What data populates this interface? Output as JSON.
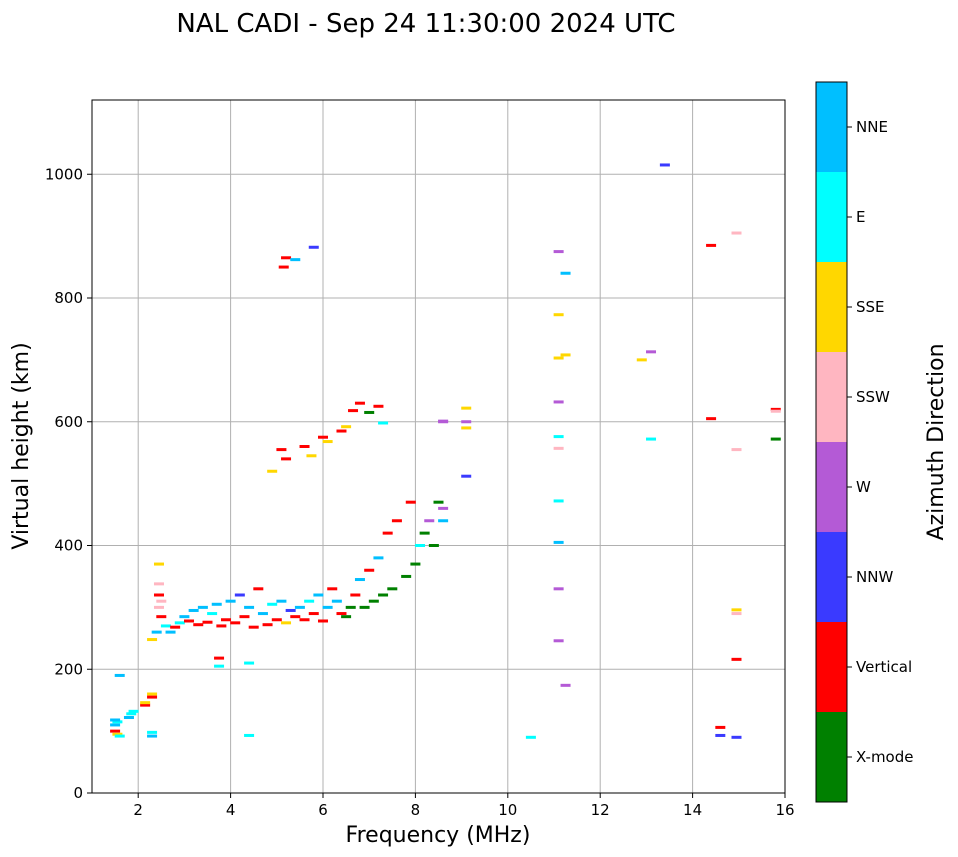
{
  "chart_data": {
    "type": "scatter",
    "title": "NAL CADI - Sep 24 11:30:00 2024 UTC",
    "xlabel": "Frequency (MHz)",
    "ylabel": "Virtual height (km)",
    "xlim": [
      1,
      16
    ],
    "ylim": [
      0,
      1120
    ],
    "xticks": [
      "2",
      "4",
      "6",
      "8",
      "10",
      "12",
      "14",
      "16"
    ],
    "yticks": [
      "0",
      "200",
      "400",
      "600",
      "800",
      "1000"
    ],
    "grid": true,
    "colorbar": {
      "label": "Azimuth Direction",
      "categories": [
        {
          "name": "X-mode",
          "color": "#008000"
        },
        {
          "name": "Vertical",
          "color": "#ff0000"
        },
        {
          "name": "NNW",
          "color": "#3a3aff"
        },
        {
          "name": "W",
          "color": "#b45ad6"
        },
        {
          "name": "SSW",
          "color": "#ffb6c1"
        },
        {
          "name": "SSE",
          "color": "#ffd700"
        },
        {
          "name": "E",
          "color": "#00ffff"
        },
        {
          "name": "NNE",
          "color": "#00bfff"
        }
      ]
    },
    "points": [
      {
        "x": 1.5,
        "y": 100,
        "c": "Vertical"
      },
      {
        "x": 1.55,
        "y": 95,
        "c": "SSE"
      },
      {
        "x": 1.6,
        "y": 92,
        "c": "E"
      },
      {
        "x": 1.5,
        "y": 110,
        "c": "NNE"
      },
      {
        "x": 1.55,
        "y": 115,
        "c": "E"
      },
      {
        "x": 1.5,
        "y": 118,
        "c": "NNE"
      },
      {
        "x": 1.6,
        "y": 190,
        "c": "NNE"
      },
      {
        "x": 1.8,
        "y": 122,
        "c": "NNE"
      },
      {
        "x": 1.85,
        "y": 128,
        "c": "E"
      },
      {
        "x": 1.9,
        "y": 132,
        "c": "E"
      },
      {
        "x": 2.15,
        "y": 142,
        "c": "Vertical"
      },
      {
        "x": 2.15,
        "y": 146,
        "c": "SSE"
      },
      {
        "x": 2.3,
        "y": 155,
        "c": "Vertical"
      },
      {
        "x": 2.3,
        "y": 160,
        "c": "SSE"
      },
      {
        "x": 2.3,
        "y": 92,
        "c": "NNE"
      },
      {
        "x": 2.3,
        "y": 98,
        "c": "E"
      },
      {
        "x": 2.3,
        "y": 248,
        "c": "SSE"
      },
      {
        "x": 2.4,
        "y": 260,
        "c": "NNE"
      },
      {
        "x": 2.45,
        "y": 300,
        "c": "SSW"
      },
      {
        "x": 2.45,
        "y": 320,
        "c": "Vertical"
      },
      {
        "x": 2.45,
        "y": 338,
        "c": "SSW"
      },
      {
        "x": 2.45,
        "y": 370,
        "c": "SSE"
      },
      {
        "x": 2.5,
        "y": 310,
        "c": "SSW"
      },
      {
        "x": 2.5,
        "y": 285,
        "c": "Vertical"
      },
      {
        "x": 2.6,
        "y": 270,
        "c": "E"
      },
      {
        "x": 2.7,
        "y": 260,
        "c": "NNE"
      },
      {
        "x": 2.8,
        "y": 268,
        "c": "Vertical"
      },
      {
        "x": 2.9,
        "y": 275,
        "c": "E"
      },
      {
        "x": 3.0,
        "y": 285,
        "c": "NNE"
      },
      {
        "x": 3.1,
        "y": 278,
        "c": "Vertical"
      },
      {
        "x": 3.2,
        "y": 295,
        "c": "NNE"
      },
      {
        "x": 3.3,
        "y": 272,
        "c": "Vertical"
      },
      {
        "x": 3.4,
        "y": 300,
        "c": "NNE"
      },
      {
        "x": 3.5,
        "y": 276,
        "c": "Vertical"
      },
      {
        "x": 3.6,
        "y": 290,
        "c": "E"
      },
      {
        "x": 3.7,
        "y": 305,
        "c": "NNE"
      },
      {
        "x": 3.8,
        "y": 270,
        "c": "Vertical"
      },
      {
        "x": 3.9,
        "y": 280,
        "c": "Vertical"
      },
      {
        "x": 4.0,
        "y": 310,
        "c": "NNE"
      },
      {
        "x": 4.1,
        "y": 275,
        "c": "Vertical"
      },
      {
        "x": 4.2,
        "y": 320,
        "c": "NNW"
      },
      {
        "x": 4.3,
        "y": 285,
        "c": "Vertical"
      },
      {
        "x": 4.4,
        "y": 300,
        "c": "NNE"
      },
      {
        "x": 4.5,
        "y": 268,
        "c": "Vertical"
      },
      {
        "x": 4.6,
        "y": 330,
        "c": "Vertical"
      },
      {
        "x": 4.7,
        "y": 290,
        "c": "NNE"
      },
      {
        "x": 4.8,
        "y": 272,
        "c": "Vertical"
      },
      {
        "x": 4.9,
        "y": 305,
        "c": "E"
      },
      {
        "x": 5.0,
        "y": 280,
        "c": "Vertical"
      },
      {
        "x": 5.1,
        "y": 310,
        "c": "NNE"
      },
      {
        "x": 5.2,
        "y": 275,
        "c": "SSE"
      },
      {
        "x": 5.3,
        "y": 295,
        "c": "NNW"
      },
      {
        "x": 5.4,
        "y": 285,
        "c": "Vertical"
      },
      {
        "x": 5.5,
        "y": 300,
        "c": "NNE"
      },
      {
        "x": 5.6,
        "y": 280,
        "c": "Vertical"
      },
      {
        "x": 5.7,
        "y": 310,
        "c": "E"
      },
      {
        "x": 5.8,
        "y": 290,
        "c": "Vertical"
      },
      {
        "x": 5.9,
        "y": 320,
        "c": "NNE"
      },
      {
        "x": 6.0,
        "y": 278,
        "c": "Vertical"
      },
      {
        "x": 6.1,
        "y": 300,
        "c": "NNE"
      },
      {
        "x": 6.2,
        "y": 330,
        "c": "Vertical"
      },
      {
        "x": 6.3,
        "y": 310,
        "c": "NNE"
      },
      {
        "x": 6.4,
        "y": 290,
        "c": "Vertical"
      },
      {
        "x": 6.5,
        "y": 285,
        "c": "X-mode"
      },
      {
        "x": 6.6,
        "y": 300,
        "c": "X-mode"
      },
      {
        "x": 6.7,
        "y": 320,
        "c": "Vertical"
      },
      {
        "x": 6.8,
        "y": 345,
        "c": "NNE"
      },
      {
        "x": 6.9,
        "y": 300,
        "c": "X-mode"
      },
      {
        "x": 7.0,
        "y": 360,
        "c": "Vertical"
      },
      {
        "x": 7.1,
        "y": 310,
        "c": "X-mode"
      },
      {
        "x": 7.2,
        "y": 380,
        "c": "NNE"
      },
      {
        "x": 7.3,
        "y": 320,
        "c": "X-mode"
      },
      {
        "x": 7.4,
        "y": 420,
        "c": "Vertical"
      },
      {
        "x": 7.5,
        "y": 330,
        "c": "X-mode"
      },
      {
        "x": 7.6,
        "y": 440,
        "c": "Vertical"
      },
      {
        "x": 7.8,
        "y": 350,
        "c": "X-mode"
      },
      {
        "x": 7.9,
        "y": 470,
        "c": "Vertical"
      },
      {
        "x": 8.0,
        "y": 370,
        "c": "X-mode"
      },
      {
        "x": 8.1,
        "y": 400,
        "c": "E"
      },
      {
        "x": 8.2,
        "y": 420,
        "c": "X-mode"
      },
      {
        "x": 8.3,
        "y": 440,
        "c": "W"
      },
      {
        "x": 8.4,
        "y": 400,
        "c": "X-mode"
      },
      {
        "x": 8.5,
        "y": 470,
        "c": "X-mode"
      },
      {
        "x": 8.6,
        "y": 440,
        "c": "NNE"
      },
      {
        "x": 8.6,
        "y": 460,
        "c": "W"
      },
      {
        "x": 8.6,
        "y": 600,
        "c": "W"
      },
      {
        "x": 3.75,
        "y": 218,
        "c": "Vertical"
      },
      {
        "x": 3.75,
        "y": 205,
        "c": "E"
      },
      {
        "x": 4.4,
        "y": 210,
        "c": "E"
      },
      {
        "x": 4.4,
        "y": 93,
        "c": "E"
      },
      {
        "x": 5.15,
        "y": 850,
        "c": "Vertical"
      },
      {
        "x": 5.2,
        "y": 865,
        "c": "Vertical"
      },
      {
        "x": 5.4,
        "y": 862,
        "c": "NNE"
      },
      {
        "x": 5.8,
        "y": 882,
        "c": "NNW"
      },
      {
        "x": 5.1,
        "y": 555,
        "c": "Vertical"
      },
      {
        "x": 5.2,
        "y": 540,
        "c": "Vertical"
      },
      {
        "x": 5.6,
        "y": 560,
        "c": "Vertical"
      },
      {
        "x": 5.75,
        "y": 545,
        "c": "SSE"
      },
      {
        "x": 6.0,
        "y": 575,
        "c": "Vertical"
      },
      {
        "x": 6.1,
        "y": 568,
        "c": "SSE"
      },
      {
        "x": 6.4,
        "y": 585,
        "c": "Vertical"
      },
      {
        "x": 6.5,
        "y": 592,
        "c": "SSE"
      },
      {
        "x": 6.65,
        "y": 618,
        "c": "Vertical"
      },
      {
        "x": 6.8,
        "y": 630,
        "c": "Vertical"
      },
      {
        "x": 7.0,
        "y": 615,
        "c": "X-mode"
      },
      {
        "x": 7.2,
        "y": 625,
        "c": "Vertical"
      },
      {
        "x": 7.3,
        "y": 598,
        "c": "E"
      },
      {
        "x": 4.9,
        "y": 520,
        "c": "SSE"
      },
      {
        "x": 8.6,
        "y": 601,
        "c": "W"
      },
      {
        "x": 9.1,
        "y": 622,
        "c": "SSE"
      },
      {
        "x": 9.1,
        "y": 600,
        "c": "W"
      },
      {
        "x": 9.1,
        "y": 590,
        "c": "SSE"
      },
      {
        "x": 9.1,
        "y": 512,
        "c": "NNW"
      },
      {
        "x": 10.5,
        "y": 90,
        "c": "E"
      },
      {
        "x": 11.1,
        "y": 875,
        "c": "W"
      },
      {
        "x": 11.25,
        "y": 840,
        "c": "NNE"
      },
      {
        "x": 11.1,
        "y": 773,
        "c": "SSE"
      },
      {
        "x": 11.1,
        "y": 703,
        "c": "SSE"
      },
      {
        "x": 11.25,
        "y": 708,
        "c": "SSE"
      },
      {
        "x": 11.1,
        "y": 632,
        "c": "W"
      },
      {
        "x": 11.1,
        "y": 576,
        "c": "E"
      },
      {
        "x": 11.1,
        "y": 557,
        "c": "SSW"
      },
      {
        "x": 11.1,
        "y": 472,
        "c": "E"
      },
      {
        "x": 11.1,
        "y": 405,
        "c": "NNE"
      },
      {
        "x": 11.1,
        "y": 330,
        "c": "W"
      },
      {
        "x": 11.1,
        "y": 246,
        "c": "W"
      },
      {
        "x": 11.25,
        "y": 174,
        "c": "W"
      },
      {
        "x": 12.9,
        "y": 700,
        "c": "SSE"
      },
      {
        "x": 13.1,
        "y": 713,
        "c": "W"
      },
      {
        "x": 13.1,
        "y": 572,
        "c": "E"
      },
      {
        "x": 13.4,
        "y": 1015,
        "c": "NNW"
      },
      {
        "x": 14.4,
        "y": 885,
        "c": "Vertical"
      },
      {
        "x": 14.4,
        "y": 605,
        "c": "Vertical"
      },
      {
        "x": 14.6,
        "y": 106,
        "c": "Vertical"
      },
      {
        "x": 14.6,
        "y": 93,
        "c": "NNW"
      },
      {
        "x": 14.95,
        "y": 905,
        "c": "SSW"
      },
      {
        "x": 14.95,
        "y": 555,
        "c": "SSW"
      },
      {
        "x": 14.95,
        "y": 296,
        "c": "SSE"
      },
      {
        "x": 14.95,
        "y": 290,
        "c": "SSW"
      },
      {
        "x": 14.95,
        "y": 216,
        "c": "Vertical"
      },
      {
        "x": 14.95,
        "y": 90,
        "c": "NNW"
      },
      {
        "x": 15.8,
        "y": 620,
        "c": "Vertical"
      },
      {
        "x": 15.8,
        "y": 617,
        "c": "SSW"
      },
      {
        "x": 15.8,
        "y": 572,
        "c": "X-mode"
      }
    ]
  }
}
